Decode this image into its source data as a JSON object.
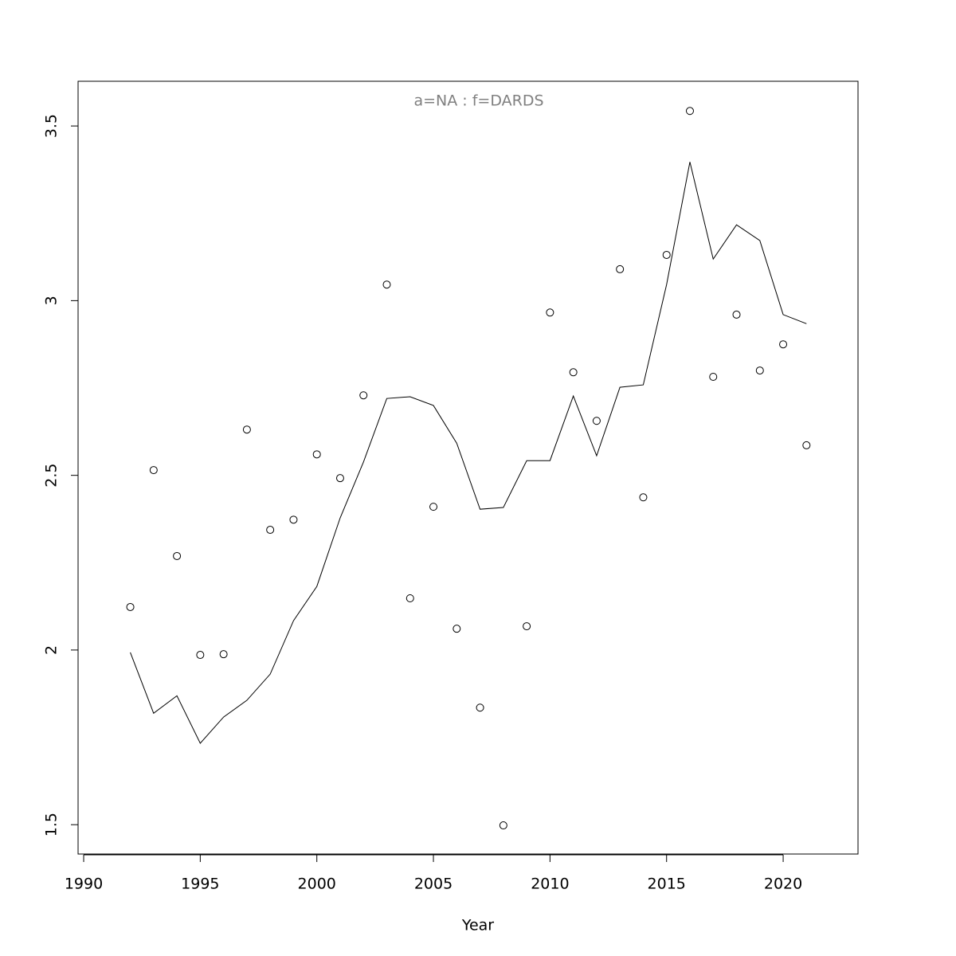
{
  "chart_data": {
    "type": "scatter",
    "title": "a=NA  :  f=DARDS",
    "title_color": "#808080",
    "xlabel": "Year",
    "x": [
      1992,
      1993,
      1994,
      1995,
      1996,
      1997,
      1998,
      1999,
      2000,
      2001,
      2002,
      2003,
      2004,
      2005,
      2006,
      2007,
      2008,
      2009,
      2010,
      2011,
      2012,
      2013,
      2014,
      2015,
      2016,
      2017,
      2018,
      2019,
      2020,
      2021
    ],
    "series": [
      {
        "style": "points",
        "color": "#000000",
        "values": [
          2.123,
          2.515,
          2.269,
          1.986,
          1.988,
          2.631,
          2.344,
          2.373,
          2.56,
          2.492,
          2.729,
          3.046,
          2.148,
          2.41,
          2.061,
          1.835,
          1.498,
          2.068,
          2.966,
          2.795,
          2.656,
          3.09,
          2.437,
          3.131,
          3.543,
          2.782,
          2.96,
          2.8,
          2.875,
          2.586
        ]
      },
      {
        "style": "line",
        "color": "#000000",
        "values": [
          1.993,
          1.819,
          1.869,
          1.733,
          1.808,
          1.856,
          1.931,
          2.084,
          2.182,
          2.378,
          2.538,
          2.72,
          2.725,
          2.7,
          2.592,
          2.403,
          2.408,
          2.542,
          2.542,
          2.727,
          2.556,
          2.752,
          2.759,
          3.046,
          3.397,
          3.119,
          3.217,
          3.172,
          2.96,
          2.934
        ]
      }
    ],
    "xlim": [
      1989.76,
      2023.21
    ],
    "xticks": [
      1990,
      1995,
      2000,
      2005,
      2010,
      2015,
      2020
    ],
    "ylim": [
      1.416,
      3.628
    ],
    "yticks": [
      1.5,
      2.0,
      2.5,
      3.0,
      3.5
    ]
  }
}
